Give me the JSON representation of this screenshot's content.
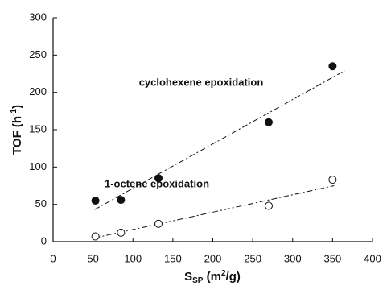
{
  "chart_data": {
    "type": "scatter",
    "xlabel_parts": [
      "S",
      "SP",
      " (m",
      "2",
      "/g)"
    ],
    "ylabel_parts": [
      "TOF (h",
      "-1",
      ")"
    ],
    "xlim": [
      0,
      400
    ],
    "xticks": [
      0,
      50,
      100,
      150,
      200,
      250,
      300,
      350,
      400
    ],
    "ylim": [
      0,
      300
    ],
    "yticks": [
      0,
      50,
      100,
      150,
      200,
      250,
      300
    ],
    "series": [
      {
        "name": "cyclohexene epoxidation",
        "color": "#111111",
        "filled": true,
        "x": [
          53,
          85,
          132,
          270,
          350
        ],
        "values": [
          55,
          56,
          85,
          160,
          235
        ],
        "fit_x": [
          52,
          365
        ],
        "fit_values": [
          43,
          229
        ]
      },
      {
        "name": "1-octene epoxidation",
        "color": "#111111",
        "filled": false,
        "x": [
          53,
          85,
          132,
          270,
          350
        ],
        "values": [
          7,
          12,
          24,
          48,
          83
        ],
        "fit_x": [
          52,
          352
        ],
        "fit_values": [
          5,
          75
        ]
      }
    ]
  }
}
